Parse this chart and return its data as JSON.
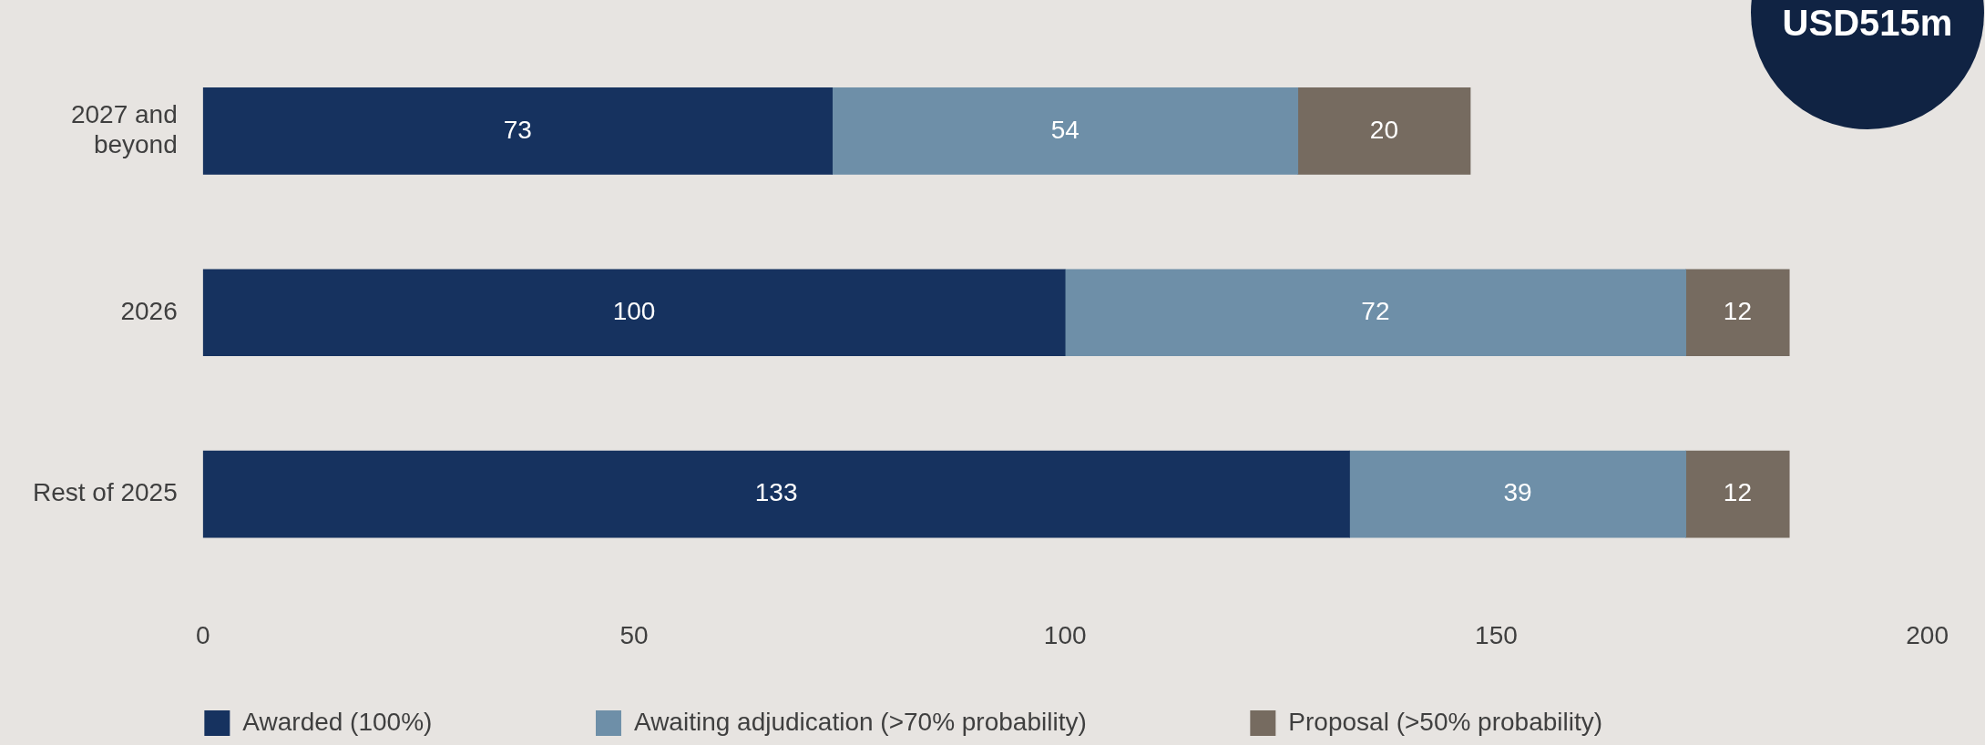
{
  "chart_data": {
    "type": "bar",
    "orientation": "horizontal",
    "stacked": true,
    "categories": [
      "2027 and beyond",
      "2026",
      "Rest of 2025"
    ],
    "series": [
      {
        "name": "Awarded (100%)",
        "color": "#16325f",
        "values": [
          73,
          100,
          133
        ]
      },
      {
        "name": "Awaiting adjudication (>70% probability)",
        "color": "#6e8fa8",
        "values": [
          54,
          72,
          39
        ]
      },
      {
        "name": "Proposal (>50% probability)",
        "color": "#766b60",
        "values": [
          20,
          12,
          12
        ]
      }
    ],
    "xlim": [
      0,
      200
    ],
    "xticks": [
      0,
      50,
      100,
      150,
      200
    ],
    "data_labels": true,
    "grid": false,
    "legend": "bottom",
    "annotations": [
      "USD515m"
    ]
  }
}
